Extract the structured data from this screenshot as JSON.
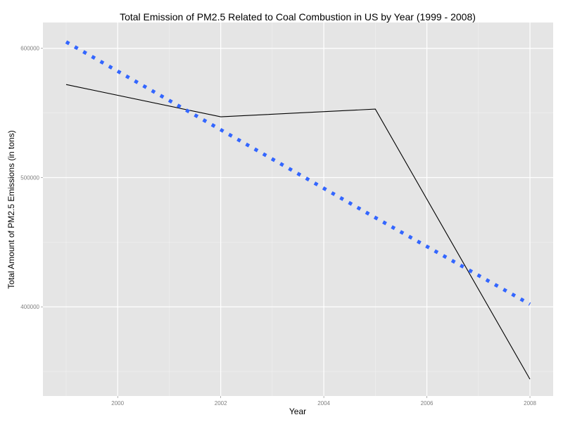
{
  "chart_data": {
    "type": "line",
    "title": "Total Emission of PM2.5 Related to Coal Combustion in US by Year (1999 - 2008)",
    "xlabel": "Year",
    "ylabel": "Total Amount of PM2.5 Emissions (in tons)",
    "x": [
      1999,
      2002,
      2005,
      2008
    ],
    "series": [
      {
        "style": "solid",
        "color": "#000000",
        "values": [
          572000,
          547000,
          553000,
          344000
        ]
      },
      {
        "style": "dotted",
        "color": "#3366ff",
        "values": [
          605000,
          537000,
          469000,
          402000
        ]
      }
    ],
    "xlim": [
      1998.55,
      2008.45
    ],
    "ylim": [
      331000,
      620000
    ],
    "x_ticks": [
      2000,
      2002,
      2004,
      2006,
      2008
    ],
    "x_tick_labels": [
      "2000",
      "2002",
      "2004",
      "2006",
      "2008"
    ],
    "y_ticks": [
      400000,
      500000,
      600000
    ],
    "y_tick_labels": [
      "400000",
      "500000",
      "600000"
    ],
    "grid": true,
    "legend": "none",
    "panel_background": "#e5e5e5",
    "grid_color": "#ffffff"
  }
}
